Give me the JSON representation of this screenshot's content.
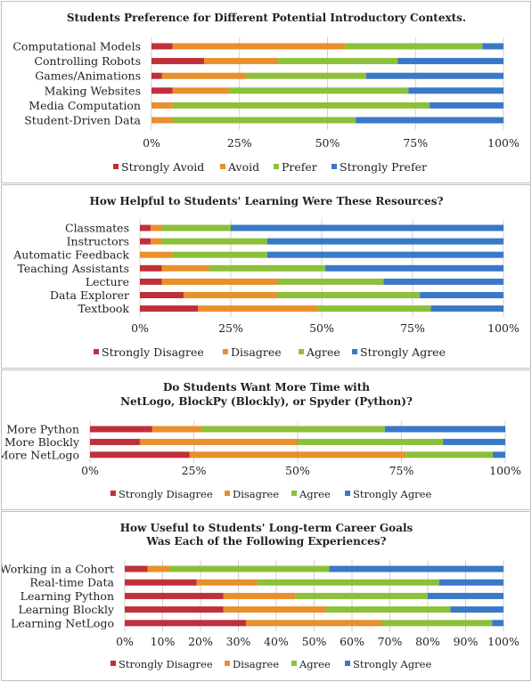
{
  "colors": {
    "strong_neg": "#C0303A",
    "neg": "#E8902A",
    "pos": "#8DC03A",
    "strong_pos": "#3A78C8",
    "grid": "#D0D0D0"
  },
  "chart_data": [
    {
      "type": "bar",
      "stacked": true,
      "orientation": "horizontal",
      "title": "Students Preference for Different Potential Introductory  Contexts.",
      "categories": [
        "Computational Models",
        "Controlling Robots",
        "Games/Animations",
        "Making Websites",
        "Media Computation",
        "Student-Driven Data"
      ],
      "series": [
        {
          "name": "Strongly Avoid",
          "values": [
            6,
            15,
            3,
            6,
            0,
            0
          ]
        },
        {
          "name": "Avoid",
          "values": [
            49,
            21,
            24,
            16,
            6,
            6
          ]
        },
        {
          "name": "Prefer",
          "values": [
            39,
            34,
            34,
            51,
            73,
            52
          ]
        },
        {
          "name": "Strongly Prefer",
          "values": [
            6,
            30,
            39,
            27,
            21,
            42
          ]
        }
      ],
      "xticks": [
        "0%",
        "25%",
        "50%",
        "75%",
        "100%"
      ],
      "xlim": [
        0,
        100
      ],
      "grid": true,
      "legend": "bottom"
    },
    {
      "type": "bar",
      "stacked": true,
      "orientation": "horizontal",
      "title": "How Helpful to Students' Learning Were These Resources?",
      "categories": [
        "Classmates",
        "Instructors",
        "Automatic Feedback",
        "Teaching Assistants",
        "Lecture",
        "Data Explorer",
        "Textbook"
      ],
      "series": [
        {
          "name": "Strongly Disagree",
          "values": [
            3,
            3,
            0,
            6,
            6,
            12,
            16
          ]
        },
        {
          "name": "Disagree",
          "values": [
            3,
            3,
            9,
            13,
            32,
            26,
            33
          ]
        },
        {
          "name": "Agree",
          "values": [
            19,
            29,
            26,
            32,
            29,
            39,
            31
          ]
        },
        {
          "name": "Strongly Agree",
          "values": [
            75,
            65,
            65,
            49,
            33,
            23,
            20
          ]
        }
      ],
      "xticks": [
        "0%",
        "25%",
        "50%",
        "75%",
        "100%"
      ],
      "xlim": [
        0,
        100
      ],
      "grid": true,
      "legend": "bottom"
    },
    {
      "type": "bar",
      "stacked": true,
      "orientation": "horizontal",
      "title": "Do Students Want More Time with\nNetLogo, BlockPy (Blockly), or Spyder (Python)?",
      "categories": [
        "More Python",
        "More Blockly",
        "More NetLogo"
      ],
      "series": [
        {
          "name": "Strongly Disagree",
          "values": [
            15,
            12,
            24
          ]
        },
        {
          "name": "Disagree",
          "values": [
            12,
            38,
            52
          ]
        },
        {
          "name": "Agree",
          "values": [
            44,
            35,
            21
          ]
        },
        {
          "name": "Strongly Agree",
          "values": [
            29,
            15,
            3
          ]
        }
      ],
      "xticks": [
        "0%",
        "25%",
        "50%",
        "75%",
        "100%"
      ],
      "xlim": [
        0,
        100
      ],
      "grid": true,
      "legend": "bottom"
    },
    {
      "type": "bar",
      "stacked": true,
      "orientation": "horizontal",
      "title": "How Useful to Students' Long-term Career Goals\nWas Each of the Following Experiences?",
      "categories": [
        "Working in a Cohort",
        "Real-time Data",
        "Learning Python",
        "Learning Blockly",
        "Learning NetLogo"
      ],
      "series": [
        {
          "name": "Strongly Disagree",
          "values": [
            6,
            19,
            26,
            26,
            32
          ]
        },
        {
          "name": "Disagree",
          "values": [
            6,
            16,
            19,
            27,
            36
          ]
        },
        {
          "name": "Agree",
          "values": [
            42,
            48,
            35,
            33,
            29
          ]
        },
        {
          "name": "Strongly Agree",
          "values": [
            46,
            17,
            20,
            14,
            3
          ]
        }
      ],
      "xticks": [
        "0%",
        "10%",
        "20%",
        "30%",
        "40%",
        "50%",
        "60%",
        "70%",
        "80%",
        "90%",
        "100%"
      ],
      "xlim": [
        0,
        100
      ],
      "grid": true,
      "legend": "bottom"
    }
  ]
}
